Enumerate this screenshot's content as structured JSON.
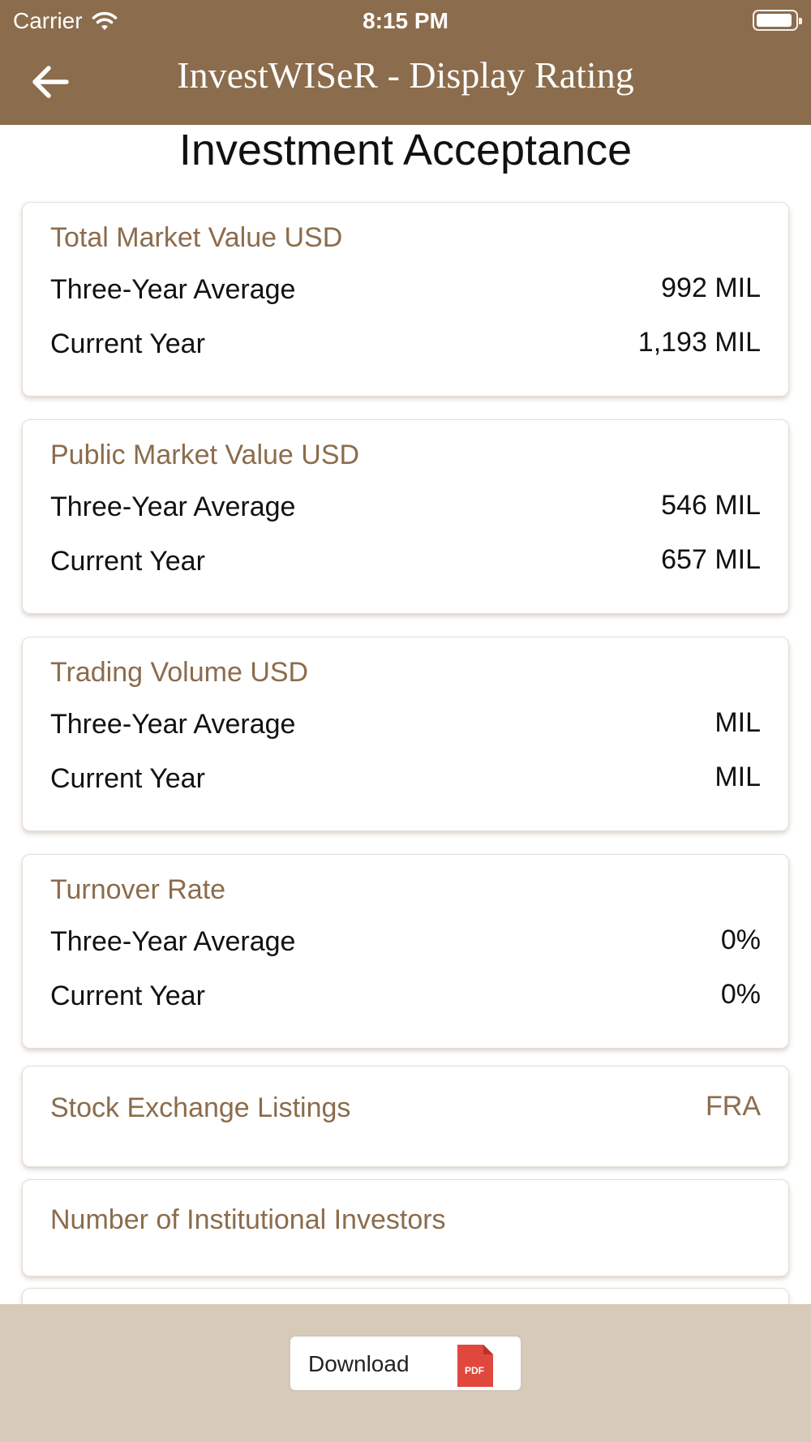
{
  "status_bar": {
    "carrier": "Carrier",
    "time": "8:15 PM"
  },
  "nav": {
    "title": "InvestWISeR - Display Rating",
    "back_icon": "back-arrow-icon"
  },
  "page": {
    "title": "Investment Acceptance"
  },
  "cards": {
    "total_market_value": {
      "title": "Total Market Value USD",
      "three_year_label": "Three-Year Average",
      "three_year_value": "992 MIL",
      "current_label": "Current Year",
      "current_value": "1,193 MIL"
    },
    "public_market_value": {
      "title": "Public Market Value USD",
      "three_year_label": "Three-Year Average",
      "three_year_value": "546 MIL",
      "current_label": "Current Year",
      "current_value": "657 MIL"
    },
    "trading_volume": {
      "title": "Trading Volume USD",
      "three_year_label": "Three-Year Average",
      "three_year_value": "MIL",
      "current_label": "Current Year",
      "current_value": "MIL"
    },
    "turnover_rate": {
      "title": "Turnover Rate",
      "three_year_label": "Three-Year Average",
      "three_year_value": "0%",
      "current_label": "Current Year",
      "current_value": "0%"
    },
    "stock_exchange": {
      "title": "Stock Exchange Listings",
      "value": "FRA"
    },
    "institutional_investors": {
      "title": "Number of Institutional Investors"
    }
  },
  "toolbar": {
    "download_label": "Download",
    "pdf_badge": "PDF"
  },
  "colors": {
    "brand": "#8b6c4c",
    "toolbar_bg": "#d8cab9",
    "pdf_red": "#e0483e"
  }
}
